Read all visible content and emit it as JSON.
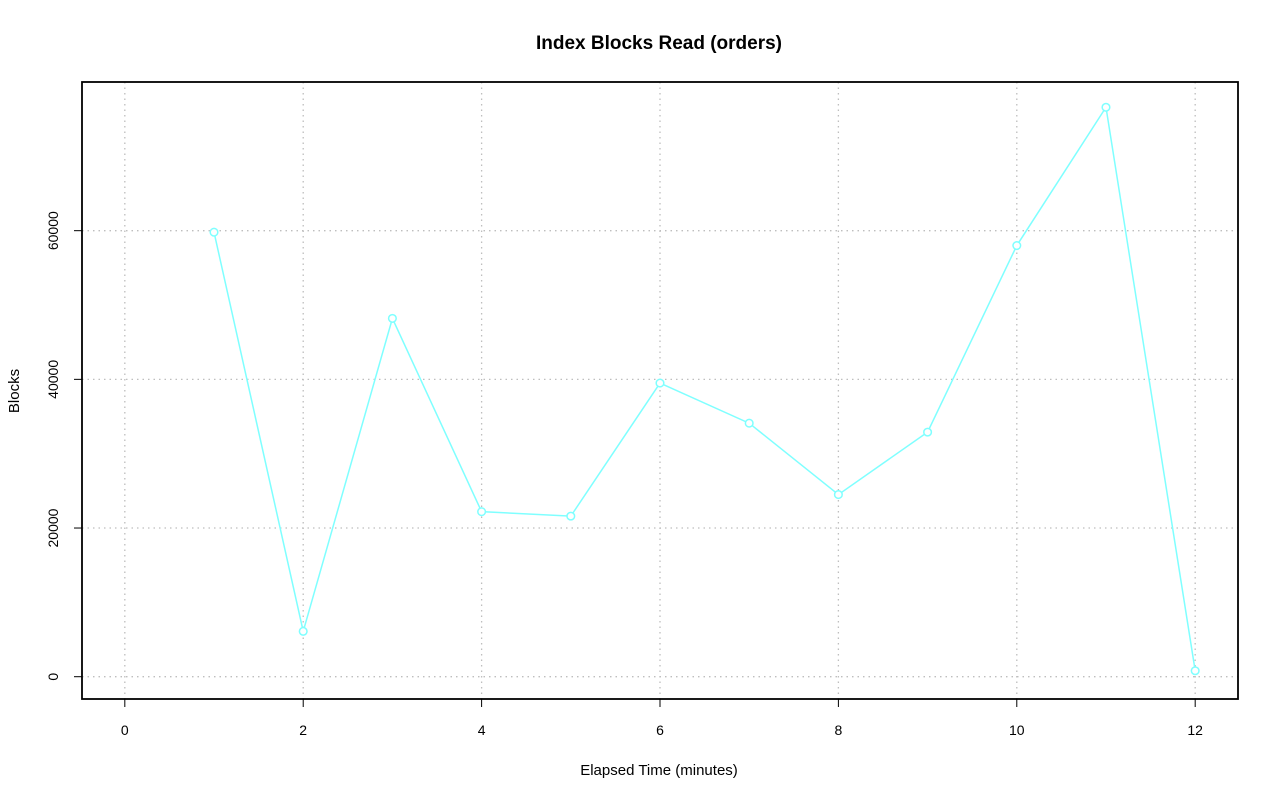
{
  "chart_data": {
    "type": "line",
    "title": "Index Blocks Read (orders)",
    "xlabel": "Elapsed Time (minutes)",
    "ylabel": "Blocks",
    "xlim": [
      -0.48,
      12.48
    ],
    "ylim": [
      -3000,
      80000
    ],
    "x_ticks": [
      0,
      2,
      4,
      6,
      8,
      10,
      12
    ],
    "y_ticks": [
      0,
      20000,
      40000,
      60000
    ],
    "grid": true,
    "series": [
      {
        "color": "#7fffff",
        "x": [
          1,
          2,
          3,
          4,
          5,
          6,
          7,
          8,
          9,
          10,
          11,
          12
        ],
        "y": [
          59800,
          6100,
          48200,
          22200,
          21600,
          39500,
          34100,
          24500,
          32900,
          58000,
          76600,
          800
        ]
      }
    ]
  }
}
